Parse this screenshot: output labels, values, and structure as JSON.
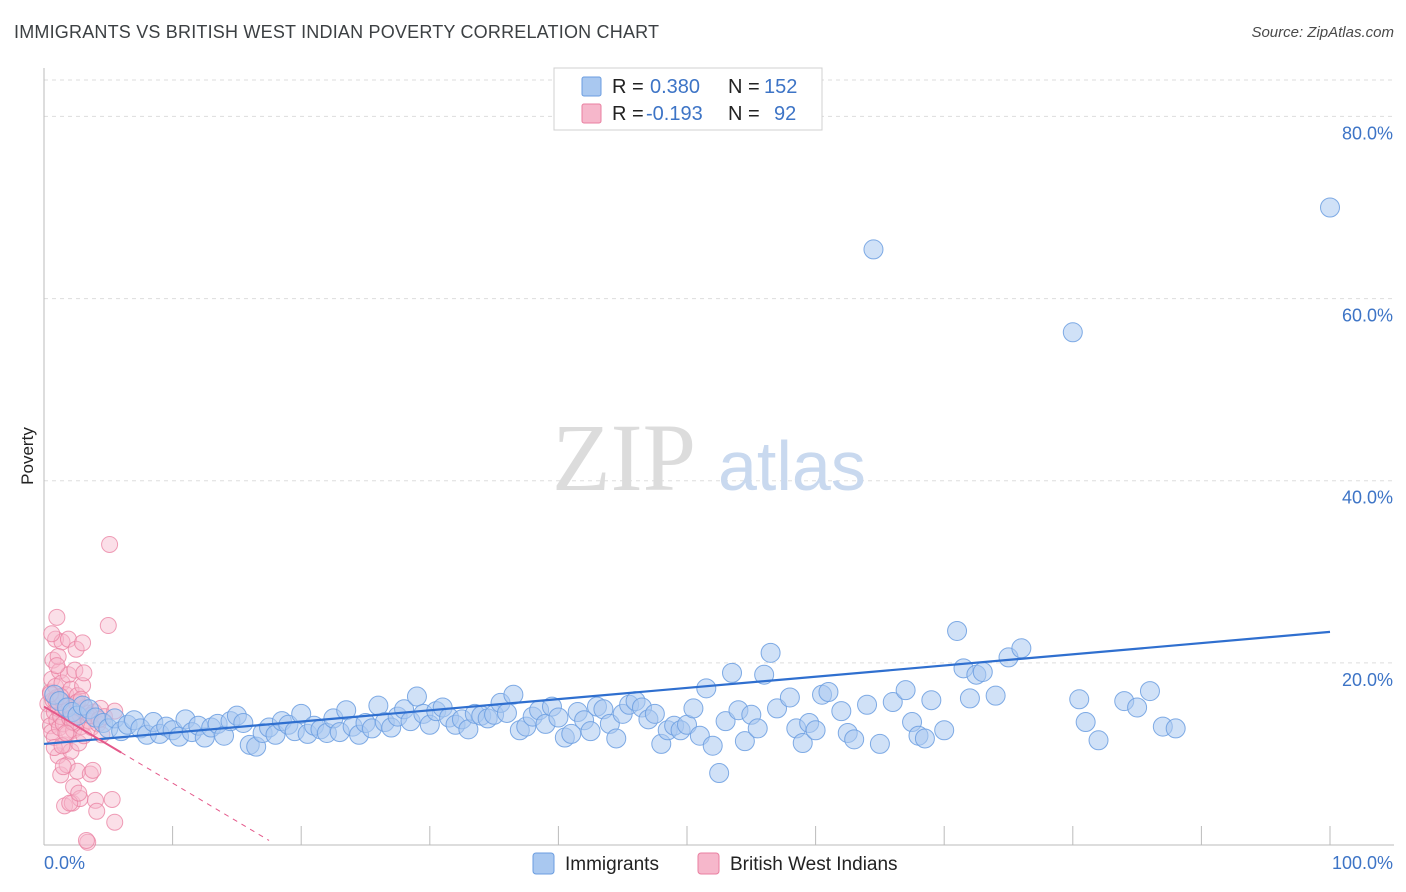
{
  "title": "IMMIGRANTS VS BRITISH WEST INDIAN POVERTY CORRELATION CHART",
  "source": "Source: ZipAtlas.com",
  "watermark": {
    "zip": "ZIP",
    "atlas": "atlas"
  },
  "legend": {
    "r_label": "R =",
    "n_label": "N =",
    "rows": [
      {
        "r": "0.380",
        "n": "152",
        "color": "#6fa3e8"
      },
      {
        "r": "-0.193",
        "n": "92",
        "color": "#ee85a6"
      }
    ]
  },
  "bottom_legend": [
    "Immigrants",
    "British West Indians"
  ],
  "colors": {
    "blue_fill": "#a9c8f0",
    "blue_stroke": "#6b9de0",
    "blue_line": "#2f6fcf",
    "pink_fill": "#f6b7cb",
    "pink_stroke": "#e97fa0",
    "pink_line": "#e4588a",
    "grid": "#dddddd",
    "tick_text": "#3d74c6"
  },
  "chart_data": {
    "type": "scatter",
    "title": "IMMIGRANTS VS BRITISH WEST INDIAN POVERTY CORRELATION CHART",
    "xlabel": "",
    "ylabel": "Poverty",
    "xlim": [
      0,
      100
    ],
    "ylim": [
      0,
      84
    ],
    "x_tick_labels": [
      "0.0%",
      "100.0%"
    ],
    "y_ticks": [
      20,
      40,
      60,
      80
    ],
    "y_tick_labels": [
      "20.0%",
      "40.0%",
      "60.0%",
      "80.0%"
    ],
    "series": [
      {
        "name": "Immigrants",
        "r": 0.38,
        "n": 152,
        "trend": {
          "x": [
            0,
            100
          ],
          "y": [
            11.1,
            23.4
          ]
        },
        "points": [
          [
            0.8,
            16.5
          ],
          [
            1.2,
            15.8
          ],
          [
            1.8,
            15.1
          ],
          [
            2.2,
            14.6
          ],
          [
            2.6,
            14.2
          ],
          [
            3.0,
            15.3
          ],
          [
            3.5,
            14.9
          ],
          [
            4.0,
            14.0
          ],
          [
            4.6,
            13.4
          ],
          [
            5.0,
            12.8
          ],
          [
            5.5,
            13.9
          ],
          [
            6.0,
            12.5
          ],
          [
            6.5,
            13.2
          ],
          [
            7.0,
            13.7
          ],
          [
            7.5,
            12.8
          ],
          [
            8.0,
            12.1
          ],
          [
            8.5,
            13.5
          ],
          [
            9.0,
            12.2
          ],
          [
            9.5,
            13.0
          ],
          [
            10.0,
            12.6
          ],
          [
            10.5,
            11.9
          ],
          [
            11.0,
            13.8
          ],
          [
            11.5,
            12.4
          ],
          [
            12.0,
            13.1
          ],
          [
            12.5,
            11.8
          ],
          [
            13.0,
            12.9
          ],
          [
            13.5,
            13.3
          ],
          [
            14.0,
            12.0
          ],
          [
            14.5,
            13.6
          ],
          [
            15.0,
            14.2
          ],
          [
            15.5,
            13.4
          ],
          [
            16.0,
            11.0
          ],
          [
            16.5,
            10.8
          ],
          [
            17.0,
            12.3
          ],
          [
            17.5,
            12.9
          ],
          [
            18.0,
            12.1
          ],
          [
            18.5,
            13.6
          ],
          [
            19.0,
            13.2
          ],
          [
            19.5,
            12.5
          ],
          [
            20.0,
            14.4
          ],
          [
            20.5,
            12.2
          ],
          [
            21.0,
            13.1
          ],
          [
            21.5,
            12.7
          ],
          [
            22.0,
            12.3
          ],
          [
            22.5,
            13.9
          ],
          [
            23.0,
            12.4
          ],
          [
            23.5,
            14.8
          ],
          [
            24.0,
            13.0
          ],
          [
            24.5,
            12.1
          ],
          [
            25.0,
            13.4
          ],
          [
            25.5,
            12.8
          ],
          [
            26.0,
            15.3
          ],
          [
            26.5,
            13.5
          ],
          [
            27.0,
            12.9
          ],
          [
            27.5,
            14.1
          ],
          [
            28.0,
            14.9
          ],
          [
            28.5,
            13.6
          ],
          [
            29.0,
            16.3
          ],
          [
            29.5,
            14.4
          ],
          [
            30.0,
            13.2
          ],
          [
            30.5,
            14.7
          ],
          [
            31.0,
            15.1
          ],
          [
            31.5,
            14.0
          ],
          [
            32.0,
            13.2
          ],
          [
            32.5,
            13.8
          ],
          [
            33.0,
            12.7
          ],
          [
            33.5,
            14.4
          ],
          [
            34.0,
            14.2
          ],
          [
            34.5,
            13.9
          ],
          [
            35.0,
            14.3
          ],
          [
            35.5,
            15.6
          ],
          [
            36.0,
            14.5
          ],
          [
            36.5,
            16.5
          ],
          [
            37.0,
            12.6
          ],
          [
            37.5,
            13.0
          ],
          [
            38.0,
            14.1
          ],
          [
            38.5,
            14.8
          ],
          [
            39.0,
            13.3
          ],
          [
            39.5,
            15.2
          ],
          [
            40.0,
            14.0
          ],
          [
            40.5,
            11.8
          ],
          [
            41.0,
            12.2
          ],
          [
            41.5,
            14.6
          ],
          [
            42.0,
            13.7
          ],
          [
            42.5,
            12.5
          ],
          [
            43.0,
            15.2
          ],
          [
            43.5,
            14.9
          ],
          [
            44.0,
            13.3
          ],
          [
            44.5,
            11.7
          ],
          [
            45.0,
            14.4
          ],
          [
            45.5,
            15.4
          ],
          [
            46.0,
            15.8
          ],
          [
            46.5,
            15.1
          ],
          [
            47.0,
            13.8
          ],
          [
            47.5,
            14.4
          ],
          [
            48.0,
            11.1
          ],
          [
            48.5,
            12.6
          ],
          [
            49.0,
            13.1
          ],
          [
            49.5,
            12.6
          ],
          [
            50.0,
            13.2
          ],
          [
            50.5,
            15.0
          ],
          [
            51.0,
            12.0
          ],
          [
            51.5,
            17.2
          ],
          [
            52.0,
            10.9
          ],
          [
            52.5,
            7.9
          ],
          [
            53.0,
            13.6
          ],
          [
            53.5,
            18.9
          ],
          [
            54.0,
            14.8
          ],
          [
            54.5,
            11.4
          ],
          [
            55.0,
            14.3
          ],
          [
            55.5,
            12.8
          ],
          [
            56.0,
            18.7
          ],
          [
            56.5,
            21.1
          ],
          [
            57.0,
            15.0
          ],
          [
            58.0,
            16.2
          ],
          [
            58.5,
            12.8
          ],
          [
            59.0,
            11.2
          ],
          [
            59.5,
            13.4
          ],
          [
            60.0,
            12.6
          ],
          [
            60.5,
            16.5
          ],
          [
            61.0,
            16.8
          ],
          [
            62.0,
            14.7
          ],
          [
            62.5,
            12.3
          ],
          [
            63.0,
            11.6
          ],
          [
            64.0,
            15.4
          ],
          [
            65.0,
            11.1
          ],
          [
            66.0,
            15.7
          ],
          [
            67.0,
            17.0
          ],
          [
            67.5,
            13.5
          ],
          [
            68.0,
            12.0
          ],
          [
            68.5,
            11.7
          ],
          [
            69.0,
            15.9
          ],
          [
            70.0,
            12.6
          ],
          [
            71.0,
            23.5
          ],
          [
            71.5,
            19.4
          ],
          [
            72.0,
            16.1
          ],
          [
            72.5,
            18.7
          ],
          [
            73.0,
            19.0
          ],
          [
            74.0,
            16.4
          ],
          [
            75.0,
            20.6
          ],
          [
            76.0,
            21.6
          ],
          [
            80.0,
            56.3
          ],
          [
            80.5,
            16.0
          ],
          [
            81.0,
            13.5
          ],
          [
            82.0,
            11.5
          ],
          [
            84.0,
            15.8
          ],
          [
            85.0,
            15.1
          ],
          [
            86.0,
            16.9
          ],
          [
            87.0,
            13.0
          ],
          [
            88.0,
            12.8
          ],
          [
            64.5,
            65.4
          ],
          [
            100.0,
            70.0
          ]
        ]
      },
      {
        "name": "British West Indians",
        "r": -0.193,
        "n": 92,
        "trend": {
          "x": [
            0,
            17.5
          ],
          "y": [
            15.2,
            0.5
          ]
        },
        "trend_solid_to_x": 6.0,
        "points": [
          [
            0.3,
            15.5
          ],
          [
            0.4,
            14.2
          ],
          [
            0.5,
            16.8
          ],
          [
            0.5,
            13.1
          ],
          [
            0.6,
            18.2
          ],
          [
            0.6,
            12.4
          ],
          [
            0.7,
            15.9
          ],
          [
            0.7,
            20.3
          ],
          [
            0.8,
            14.6
          ],
          [
            0.8,
            11.8
          ],
          [
            0.9,
            22.6
          ],
          [
            0.9,
            17.4
          ],
          [
            1.0,
            25.0
          ],
          [
            1.0,
            13.7
          ],
          [
            1.0,
            16.2
          ],
          [
            1.1,
            9.8
          ],
          [
            1.1,
            15.0
          ],
          [
            1.2,
            19.1
          ],
          [
            1.2,
            12.9
          ],
          [
            1.3,
            7.7
          ],
          [
            1.3,
            14.1
          ],
          [
            1.4,
            17.8
          ],
          [
            1.4,
            22.3
          ],
          [
            1.5,
            13.3
          ],
          [
            1.5,
            15.7
          ],
          [
            1.6,
            4.3
          ],
          [
            1.6,
            11.0
          ],
          [
            1.7,
            16.5
          ],
          [
            1.7,
            14.8
          ],
          [
            1.8,
            8.8
          ],
          [
            1.8,
            12.2
          ],
          [
            1.9,
            18.7
          ],
          [
            1.9,
            22.6
          ],
          [
            2.0,
            13.9
          ],
          [
            2.0,
            15.3
          ],
          [
            2.1,
            10.3
          ],
          [
            2.1,
            17.1
          ],
          [
            2.2,
            4.6
          ],
          [
            2.2,
            14.0
          ],
          [
            2.3,
            6.4
          ],
          [
            2.3,
            12.6
          ],
          [
            2.4,
            19.2
          ],
          [
            2.4,
            13.4
          ],
          [
            2.5,
            21.5
          ],
          [
            2.5,
            15.6
          ],
          [
            2.6,
            8.1
          ],
          [
            2.6,
            16.4
          ],
          [
            2.7,
            11.2
          ],
          [
            2.8,
            14.3
          ],
          [
            2.8,
            5.1
          ],
          [
            2.9,
            13.0
          ],
          [
            3.0,
            17.5
          ],
          [
            3.0,
            22.2
          ],
          [
            3.1,
            12.0
          ],
          [
            3.2,
            15.1
          ],
          [
            3.3,
            14.5
          ],
          [
            3.4,
            0.3
          ],
          [
            3.5,
            13.6
          ],
          [
            3.6,
            7.8
          ],
          [
            3.7,
            12.9
          ],
          [
            3.8,
            8.2
          ],
          [
            3.9,
            14.6
          ],
          [
            4.0,
            4.9
          ],
          [
            4.1,
            3.7
          ],
          [
            4.2,
            13.3
          ],
          [
            4.4,
            15.0
          ],
          [
            4.5,
            12.1
          ],
          [
            4.7,
            14.1
          ],
          [
            5.0,
            24.1
          ],
          [
            5.1,
            33.0
          ],
          [
            5.3,
            5.0
          ],
          [
            5.5,
            14.7
          ],
          [
            5.5,
            2.5
          ],
          [
            0.8,
            10.7
          ],
          [
            1.4,
            10.9
          ],
          [
            2.6,
            15.7
          ],
          [
            3.1,
            18.9
          ],
          [
            3.3,
            0.5
          ],
          [
            0.6,
            23.2
          ],
          [
            1.1,
            20.7
          ],
          [
            2.0,
            4.6
          ],
          [
            2.7,
            5.7
          ],
          [
            1.5,
            8.6
          ],
          [
            0.9,
            15.9
          ],
          [
            1.3,
            16.3
          ],
          [
            2.2,
            13.5
          ],
          [
            1.7,
            12.3
          ],
          [
            0.5,
            16.6
          ],
          [
            2.9,
            16.0
          ],
          [
            1.0,
            19.7
          ],
          [
            3.6,
            14.2
          ],
          [
            4.3,
            13.8
          ]
        ]
      }
    ]
  }
}
